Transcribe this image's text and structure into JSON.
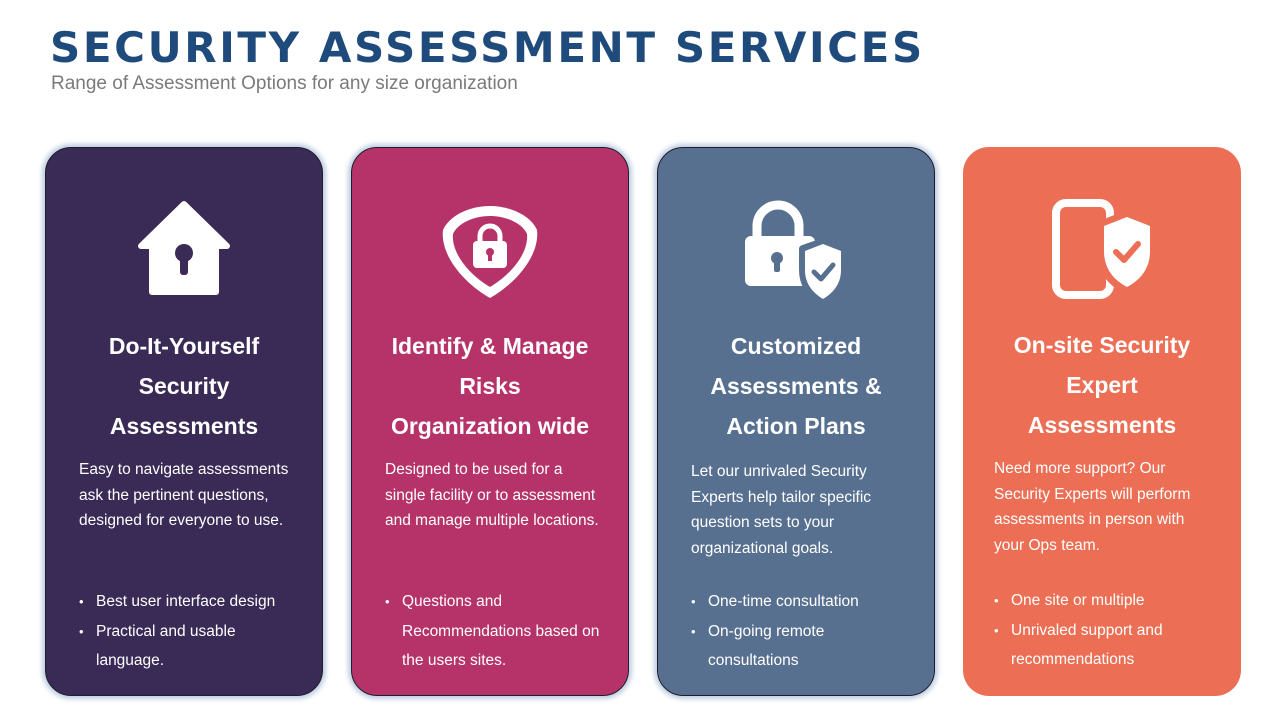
{
  "header": {
    "title": "SECURITY ASSESSMENT SERVICES",
    "subtitle": "Range of Assessment Options for any size organization"
  },
  "cards": [
    {
      "icon": "house-keyhole-icon",
      "color": "#3a2a56",
      "title_lines": [
        "Do-It-Yourself",
        "Security",
        "Assessments"
      ],
      "description": "Easy to navigate assessments ask the pertinent questions, designed for everyone to use.",
      "bullets": [
        "Best user interface design",
        "Practical and usable language."
      ]
    },
    {
      "icon": "shield-lock-icon",
      "color": "#b6336a",
      "title_lines": [
        "Identify & Manage",
        "Risks",
        "Organization wide"
      ],
      "description": "Designed to be used for a single facility or to assessment and manage multiple locations.",
      "bullets": [
        "Questions and Recommendations based on the users sites."
      ]
    },
    {
      "icon": "padlock-shield-check-icon",
      "color": "#587090",
      "title_lines": [
        "Customized",
        "Assessments &",
        "Action Plans"
      ],
      "description": "Let our unrivaled Security Experts help tailor specific question sets to your organizational goals.",
      "bullets": [
        "One-time consultation",
        "On-going remote consultations"
      ]
    },
    {
      "icon": "phone-shield-check-icon",
      "color": "#ec6f55",
      "title_lines": [
        "On-site Security",
        "Expert",
        "Assessments"
      ],
      "description": "Need more support? Our Security Experts will perform assessments in person with your Ops team.",
      "bullets": [
        "One site or multiple",
        "Unrivaled support and recommendations"
      ]
    }
  ]
}
